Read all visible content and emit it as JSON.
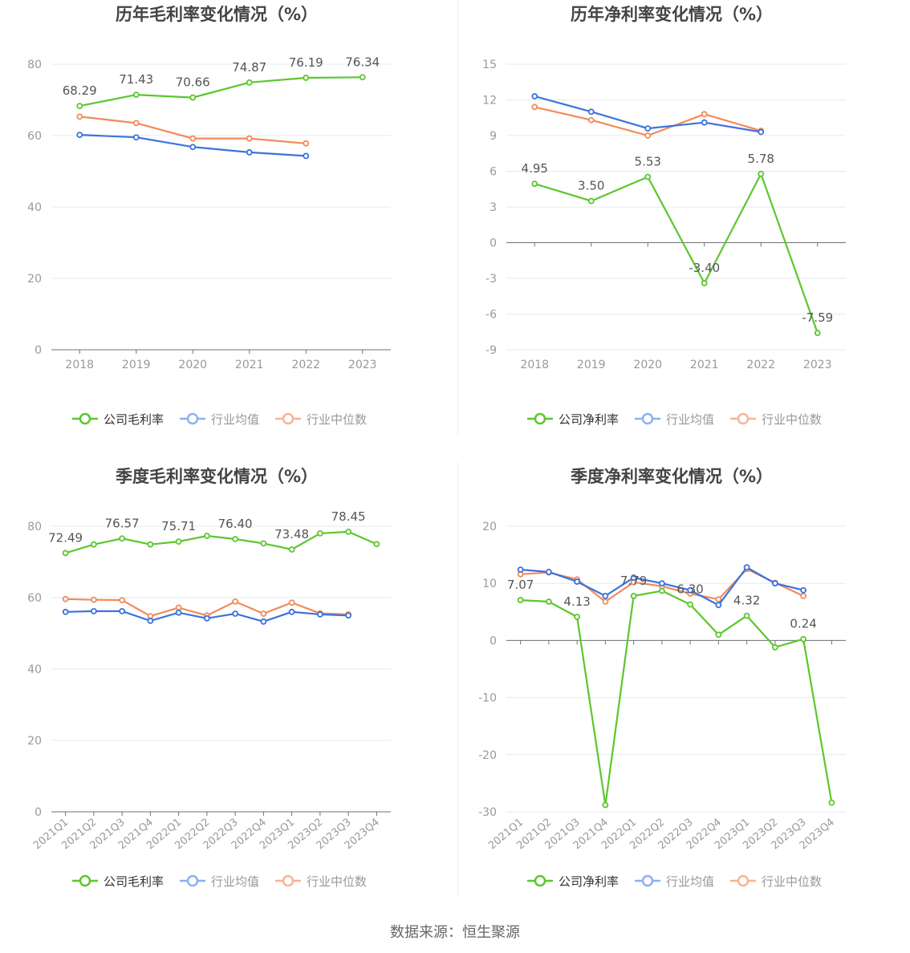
{
  "colors": {
    "company": "#5cc72e",
    "avg": "#3b73dc",
    "median": "#f28a5b",
    "grid": "#e5e8f0",
    "axis": "#6e7079",
    "tick": "#999999",
    "title": "#444444",
    "label": "#555555"
  },
  "source": "数据来源：恒生聚源",
  "chart_data": [
    {
      "type": "line",
      "title": "历年毛利率变化情况（%）",
      "categories": [
        "2018",
        "2019",
        "2020",
        "2021",
        "2022",
        "2023"
      ],
      "ylim": [
        0,
        80
      ],
      "yticks": [
        0,
        20,
        40,
        60,
        80
      ],
      "legend_position": "bottom",
      "grid": true,
      "series": [
        {
          "name": "公司毛利率",
          "role": "company",
          "values": [
            68.29,
            71.43,
            70.66,
            74.87,
            76.19,
            76.34
          ],
          "labels": [
            "68.29",
            "71.43",
            "70.66",
            "74.87",
            "76.19",
            "76.34"
          ]
        },
        {
          "name": "行业均值",
          "role": "avg",
          "values": [
            60.2,
            59.5,
            56.8,
            55.3,
            54.3,
            null
          ]
        },
        {
          "name": "行业中位数",
          "role": "median",
          "values": [
            65.3,
            63.5,
            59.2,
            59.2,
            57.8,
            null
          ]
        }
      ]
    },
    {
      "type": "line",
      "title": "历年净利率变化情况（%）",
      "categories": [
        "2018",
        "2019",
        "2020",
        "2021",
        "2022",
        "2023"
      ],
      "ylim": [
        -9,
        15
      ],
      "yticks": [
        -9,
        -6,
        -3,
        0,
        3,
        6,
        9,
        12,
        15
      ],
      "legend_position": "bottom",
      "grid": true,
      "series": [
        {
          "name": "公司净利率",
          "role": "company",
          "values": [
            4.95,
            3.5,
            5.53,
            -3.4,
            5.78,
            -7.59
          ],
          "labels": [
            "4.95",
            "3.50",
            "5.53",
            "-3.40",
            "5.78",
            "-7.59"
          ]
        },
        {
          "name": "行业均值",
          "role": "avg",
          "values": [
            12.3,
            11.0,
            9.6,
            10.1,
            9.3,
            null
          ]
        },
        {
          "name": "行业中位数",
          "role": "median",
          "values": [
            11.4,
            10.3,
            9.0,
            10.8,
            9.4,
            null
          ]
        }
      ]
    },
    {
      "type": "line",
      "title": "季度毛利率变化情况（%）",
      "categories": [
        "2021Q1",
        "2021Q2",
        "2021Q3",
        "2021Q4",
        "2022Q1",
        "2022Q2",
        "2022Q3",
        "2022Q4",
        "2023Q1",
        "2023Q2",
        "2023Q3",
        "2023Q4"
      ],
      "ylim": [
        0,
        80
      ],
      "yticks": [
        0,
        20,
        40,
        60,
        80
      ],
      "legend_position": "bottom",
      "grid": true,
      "series": [
        {
          "name": "公司毛利率",
          "role": "company",
          "values": [
            72.49,
            74.9,
            76.57,
            74.9,
            75.71,
            77.3,
            76.4,
            75.2,
            73.48,
            78.0,
            78.45,
            75.0
          ],
          "labels": [
            "72.49",
            null,
            "76.57",
            null,
            "75.71",
            null,
            "76.40",
            null,
            "73.48",
            null,
            "78.45",
            null
          ]
        },
        {
          "name": "行业均值",
          "role": "avg",
          "values": [
            56.0,
            56.2,
            56.2,
            53.5,
            55.8,
            54.2,
            55.5,
            53.3,
            56.0,
            55.3,
            55.0,
            null
          ]
        },
        {
          "name": "行业中位数",
          "role": "median",
          "values": [
            59.6,
            59.4,
            59.3,
            54.8,
            57.2,
            55.0,
            58.9,
            55.5,
            58.6,
            55.6,
            55.3,
            null
          ]
        }
      ]
    },
    {
      "type": "line",
      "title": "季度净利率变化情况（%）",
      "categories": [
        "2021Q1",
        "2021Q2",
        "2021Q3",
        "2021Q4",
        "2022Q1",
        "2022Q2",
        "2022Q3",
        "2022Q4",
        "2023Q1",
        "2023Q2",
        "2023Q3",
        "2023Q4"
      ],
      "ylim": [
        -30,
        20
      ],
      "yticks": [
        -30,
        -20,
        -10,
        0,
        10,
        20
      ],
      "legend_position": "bottom",
      "grid": true,
      "series": [
        {
          "name": "公司净利率",
          "role": "company",
          "values": [
            7.07,
            6.8,
            4.13,
            -28.8,
            7.79,
            8.7,
            6.3,
            1.0,
            4.32,
            -1.2,
            0.24,
            -28.4
          ],
          "labels": [
            "7.07",
            null,
            "4.13",
            null,
            "7.79",
            null,
            "6.30",
            null,
            "4.32",
            null,
            "0.24",
            null
          ]
        },
        {
          "name": "行业均值",
          "role": "avg",
          "values": [
            12.4,
            12.0,
            10.3,
            7.8,
            11.0,
            10.0,
            8.8,
            6.2,
            12.8,
            10.0,
            8.8,
            null
          ]
        },
        {
          "name": "行业中位数",
          "role": "median",
          "values": [
            11.6,
            11.9,
            10.7,
            6.8,
            10.2,
            9.5,
            8.2,
            7.2,
            12.5,
            10.1,
            7.8,
            null
          ]
        }
      ]
    }
  ]
}
